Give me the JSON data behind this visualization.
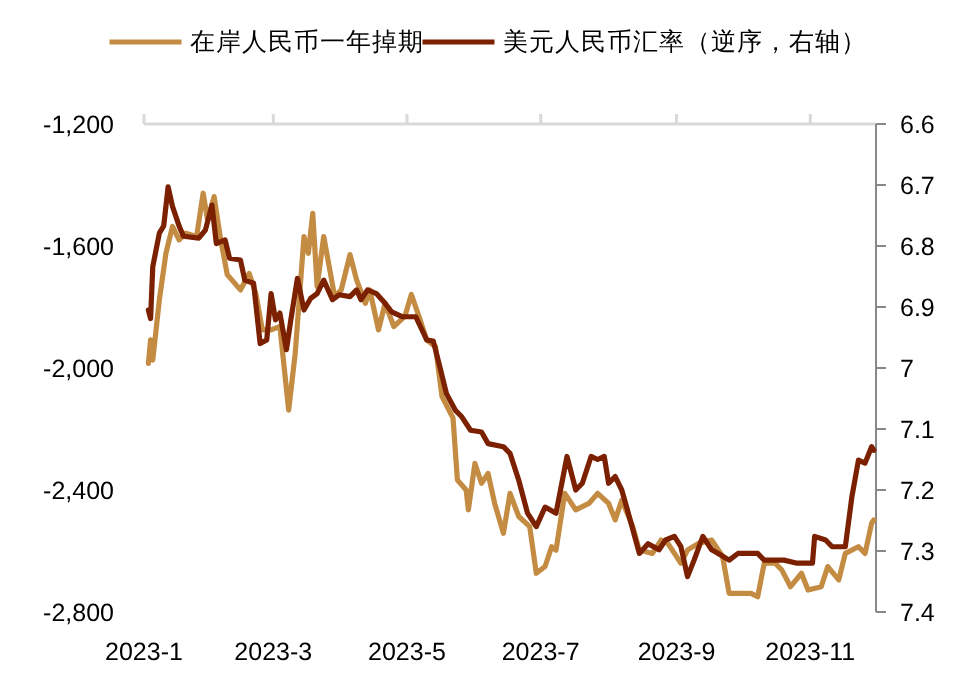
{
  "chart_data": {
    "type": "line",
    "legend": "top",
    "grid": false,
    "line_style": "solid",
    "marker": "none",
    "xlim": [
      "2023-01-01",
      "2023-12-01"
    ],
    "xticks": [
      {
        "value": "2023-01-01",
        "label": "2023-1"
      },
      {
        "value": "2023-03-01",
        "label": "2023-3"
      },
      {
        "value": "2023-05-01",
        "label": "2023-5"
      },
      {
        "value": "2023-07-01",
        "label": "2023-7"
      },
      {
        "value": "2023-09-01",
        "label": "2023-9"
      },
      {
        "value": "2023-11-01",
        "label": "2023-11"
      }
    ],
    "ylim": [
      -2800,
      -1200
    ],
    "yticks": [
      {
        "value": -2800,
        "label": "-2,800"
      },
      {
        "value": -2400,
        "label": "-2,400"
      },
      {
        "value": -2000,
        "label": "-2,000"
      },
      {
        "value": -1600,
        "label": "-1,600"
      },
      {
        "value": -1200,
        "label": "-1,200"
      }
    ],
    "y2lim": [
      7.4,
      6.6
    ],
    "y2ticks": [
      6.6,
      6.7,
      6.8,
      6.9,
      7,
      7.1,
      7.2,
      7.3,
      7.4
    ],
    "series": [
      {
        "name": "在岸人民币一年掉期",
        "color": "#c48b43",
        "x": [
          "2023-01-03",
          "2023-01-04",
          "2023-01-05",
          "2023-01-08",
          "2023-01-11",
          "2023-01-14",
          "2023-01-17",
          "2023-01-20",
          "2023-01-25",
          "2023-01-28",
          "2023-01-30",
          "2023-02-02",
          "2023-02-05",
          "2023-02-08",
          "2023-02-14",
          "2023-02-18",
          "2023-02-21",
          "2023-02-24",
          "2023-02-28",
          "2023-03-04",
          "2023-03-08",
          "2023-03-11",
          "2023-03-15",
          "2023-03-17",
          "2023-03-19",
          "2023-03-21",
          "2023-03-24",
          "2023-03-29",
          "2023-04-01",
          "2023-04-05",
          "2023-04-08",
          "2023-04-12",
          "2023-04-14",
          "2023-04-18",
          "2023-04-21",
          "2023-04-25",
          "2023-04-30",
          "2023-05-03",
          "2023-05-07",
          "2023-05-10",
          "2023-05-14",
          "2023-05-17",
          "2023-05-22",
          "2023-05-24",
          "2023-05-28",
          "2023-05-29",
          "2023-06-01",
          "2023-06-04",
          "2023-06-07",
          "2023-06-10",
          "2023-06-14",
          "2023-06-17",
          "2023-06-21",
          "2023-06-26",
          "2023-06-29",
          "2023-07-03",
          "2023-07-06",
          "2023-07-08",
          "2023-07-12",
          "2023-07-17",
          "2023-07-23",
          "2023-07-27",
          "2023-08-01",
          "2023-08-04",
          "2023-08-07",
          "2023-08-12",
          "2023-08-15",
          "2023-08-21",
          "2023-08-25",
          "2023-08-28",
          "2023-09-03",
          "2023-09-06",
          "2023-09-11",
          "2023-09-17",
          "2023-09-22",
          "2023-09-25",
          "2023-10-05",
          "2023-10-08",
          "2023-10-11",
          "2023-10-16",
          "2023-10-19",
          "2023-10-23",
          "2023-10-28",
          "2023-10-31",
          "2023-11-06",
          "2023-11-09",
          "2023-11-14",
          "2023-11-17",
          "2023-11-23",
          "2023-11-26",
          "2023-11-29",
          "2023-11-30"
        ],
        "values": [
          -1985,
          -1908,
          -1974,
          -1777,
          -1624,
          -1536,
          -1580,
          -1558,
          -1569,
          -1427,
          -1515,
          -1438,
          -1580,
          -1694,
          -1744,
          -1690,
          -1755,
          -1875,
          -1875,
          -1864,
          -2138,
          -1952,
          -1569,
          -1624,
          -1493,
          -1733,
          -1569,
          -1766,
          -1744,
          -1628,
          -1711,
          -1788,
          -1744,
          -1875,
          -1788,
          -1864,
          -1831,
          -1759,
          -1842,
          -1908,
          -1930,
          -2094,
          -2164,
          -2367,
          -2400,
          -2465,
          -2313,
          -2378,
          -2346,
          -2444,
          -2542,
          -2411,
          -2487,
          -2520,
          -2673,
          -2651,
          -2586,
          -2597,
          -2411,
          -2465,
          -2444,
          -2411,
          -2444,
          -2498,
          -2433,
          -2520,
          -2597,
          -2608,
          -2564,
          -2575,
          -2640,
          -2597,
          -2575,
          -2564,
          -2618,
          -2739,
          -2739,
          -2750,
          -2640,
          -2640,
          -2662,
          -2717,
          -2673,
          -2728,
          -2717,
          -2651,
          -2695,
          -2608,
          -2586,
          -2608,
          -2509,
          -2498
        ]
      },
      {
        "name": "美元人民币汇率（逆序，右轴）",
        "color": "#7b2000",
        "axis": "y2",
        "x": [
          "2023-01-03",
          "2023-01-04",
          "2023-01-05",
          "2023-01-08",
          "2023-01-10",
          "2023-01-12",
          "2023-01-14",
          "2023-01-17",
          "2023-01-19",
          "2023-01-26",
          "2023-01-29",
          "2023-02-01",
          "2023-02-03",
          "2023-02-07",
          "2023-02-09",
          "2023-02-14",
          "2023-02-16",
          "2023-02-20",
          "2023-02-23",
          "2023-02-26",
          "2023-02-28",
          "2023-03-02",
          "2023-03-04",
          "2023-03-07",
          "2023-03-09",
          "2023-03-12",
          "2023-03-15",
          "2023-03-18",
          "2023-03-21",
          "2023-03-24",
          "2023-03-28",
          "2023-03-31",
          "2023-04-05",
          "2023-04-08",
          "2023-04-10",
          "2023-04-13",
          "2023-04-17",
          "2023-04-21",
          "2023-04-24",
          "2023-04-29",
          "2023-05-05",
          "2023-05-10",
          "2023-05-13",
          "2023-05-16",
          "2023-05-19",
          "2023-05-23",
          "2023-05-26",
          "2023-05-30",
          "2023-06-04",
          "2023-06-07",
          "2023-06-14",
          "2023-06-17",
          "2023-06-21",
          "2023-06-25",
          "2023-06-29",
          "2023-07-03",
          "2023-07-08",
          "2023-07-13",
          "2023-07-17",
          "2023-07-20",
          "2023-07-24",
          "2023-07-27",
          "2023-07-30",
          "2023-08-01",
          "2023-08-04",
          "2023-08-07",
          "2023-08-10",
          "2023-08-15",
          "2023-08-19",
          "2023-08-24",
          "2023-08-27",
          "2023-08-31",
          "2023-09-03",
          "2023-09-06",
          "2023-09-09",
          "2023-09-13",
          "2023-09-17",
          "2023-09-20",
          "2023-09-25",
          "2023-09-29",
          "2023-10-08",
          "2023-10-11",
          "2023-10-16",
          "2023-10-20",
          "2023-10-26",
          "2023-11-02",
          "2023-11-03",
          "2023-11-08",
          "2023-11-11",
          "2023-11-17",
          "2023-11-20",
          "2023-11-23",
          "2023-11-26",
          "2023-11-29",
          "2023-11-30"
        ],
        "values": [
          6.905,
          6.919,
          6.834,
          6.779,
          6.767,
          6.703,
          6.735,
          6.767,
          6.784,
          6.787,
          6.774,
          6.733,
          6.796,
          6.79,
          6.82,
          6.823,
          6.856,
          6.861,
          6.96,
          6.954,
          6.878,
          6.921,
          6.91,
          6.97,
          6.921,
          6.853,
          6.905,
          6.886,
          6.878,
          6.856,
          6.888,
          6.88,
          6.883,
          6.872,
          6.888,
          6.872,
          6.878,
          6.894,
          6.908,
          6.916,
          6.916,
          6.954,
          6.956,
          6.998,
          7.042,
          7.069,
          7.08,
          7.102,
          7.105,
          7.124,
          7.129,
          7.14,
          7.184,
          7.238,
          7.26,
          7.228,
          7.238,
          7.145,
          7.2,
          7.189,
          7.145,
          7.15,
          7.145,
          7.189,
          7.178,
          7.2,
          7.238,
          7.304,
          7.288,
          7.298,
          7.282,
          7.276,
          7.293,
          7.342,
          7.315,
          7.276,
          7.298,
          7.304,
          7.315,
          7.304,
          7.304,
          7.315,
          7.315,
          7.315,
          7.32,
          7.32,
          7.276,
          7.282,
          7.293,
          7.293,
          7.211,
          7.151,
          7.156,
          7.129,
          7.135
        ]
      }
    ]
  }
}
